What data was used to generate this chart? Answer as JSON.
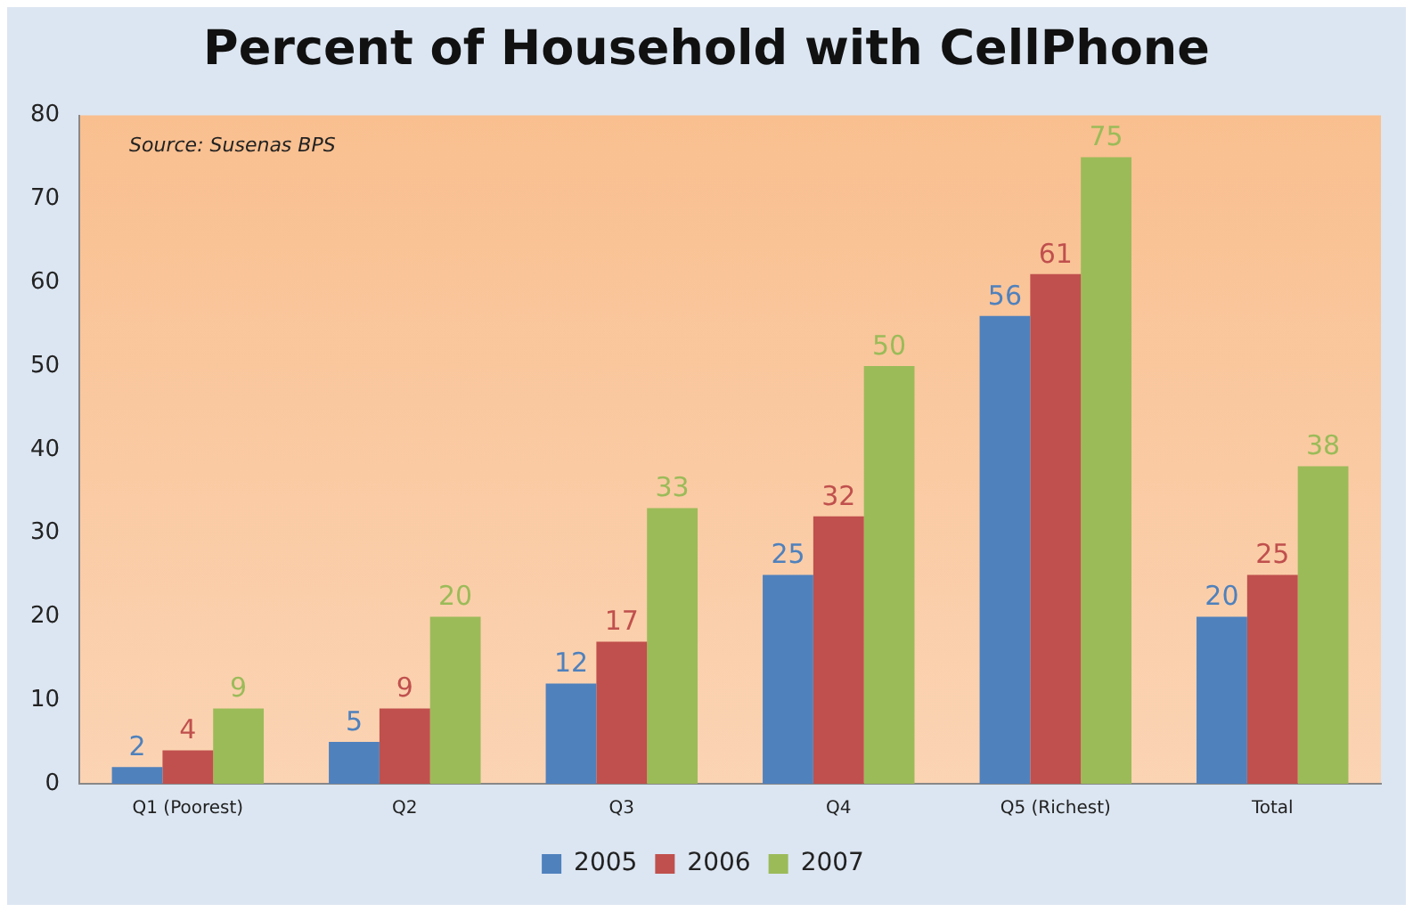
{
  "chart_data": {
    "type": "bar",
    "title": "Percent of Household with CellPhone",
    "categories": [
      "Q1 (Poorest)",
      "Q2",
      "Q3",
      "Q4",
      "Q5 (Richest)",
      "Total"
    ],
    "series": [
      {
        "name": "2005",
        "color": "#4f81bd",
        "values": [
          2,
          5,
          12,
          25,
          56,
          20
        ]
      },
      {
        "name": "2006",
        "color": "#c0504d",
        "values": [
          4,
          9,
          17,
          32,
          61,
          25
        ]
      },
      {
        "name": "2007",
        "color": "#9bbb59",
        "values": [
          9,
          20,
          33,
          50,
          75,
          38
        ]
      }
    ],
    "ylim": [
      0,
      80
    ],
    "yticks": [
      0,
      10,
      20,
      30,
      40,
      50,
      60,
      70,
      80
    ],
    "grid": false,
    "legend": "bottom",
    "data_labels": true,
    "annotations": [
      "Source: Susenas BPS"
    ]
  }
}
